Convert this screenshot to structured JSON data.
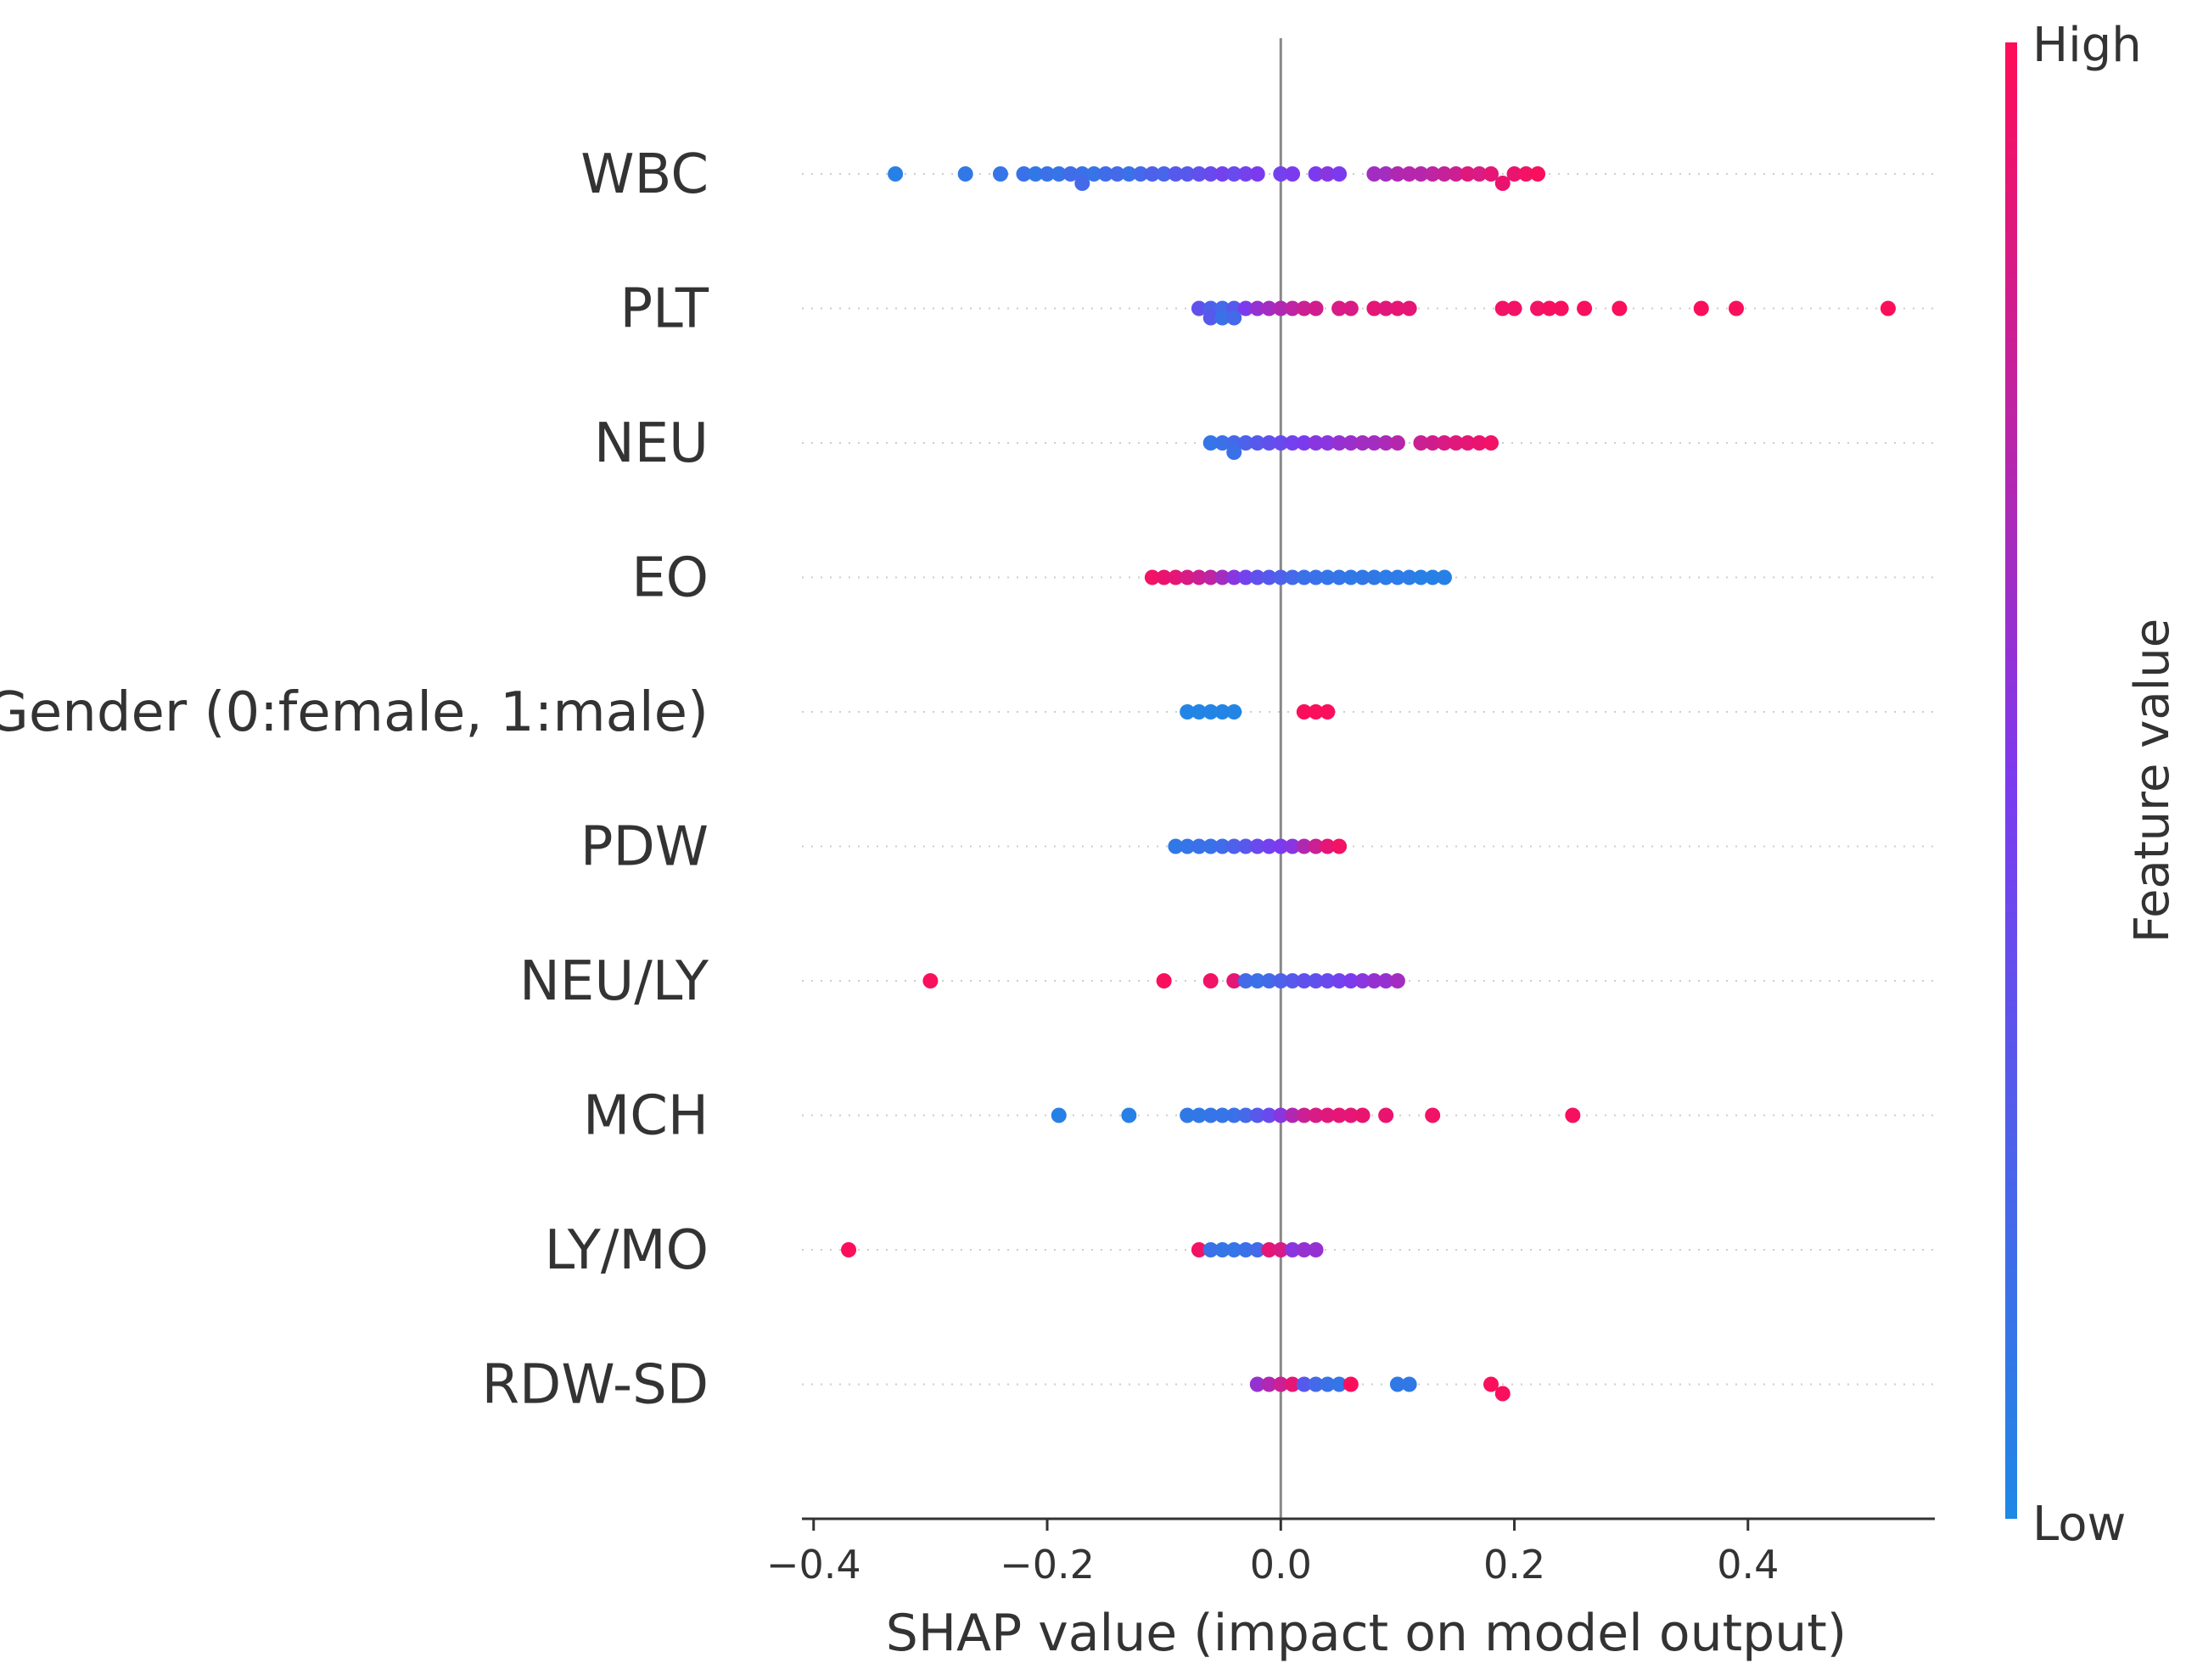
{
  "chart_data": {
    "type": "scatter",
    "subtype": "shap-beeswarm",
    "xlabel": "SHAP value (impact on model output)",
    "xlim": [
      -0.41,
      0.56
    ],
    "xticks": [
      -0.4,
      -0.2,
      0.0,
      0.2,
      0.4
    ],
    "xtick_labels": [
      "−0.4",
      "−0.2",
      "0.0",
      "0.2",
      "0.4"
    ],
    "zero_line": 0.0,
    "colorbar": {
      "title": "Feature value",
      "high_label": "High",
      "low_label": "Low",
      "low_color": "#1e88e5",
      "mid_color": "#7c3aef",
      "high_color": "#ff0d57"
    },
    "features": [
      {
        "name": "WBC",
        "points": [
          [
            -0.33,
            0.05
          ],
          [
            -0.27,
            0.1
          ],
          [
            -0.24,
            0.12
          ],
          [
            -0.22,
            0.15
          ],
          [
            -0.21,
            0.1
          ],
          [
            -0.2,
            0.15
          ],
          [
            -0.19,
            0.12
          ],
          [
            -0.18,
            0.18
          ],
          [
            -0.17,
            0.15
          ],
          [
            -0.17,
            0.2
          ],
          [
            -0.16,
            0.12
          ],
          [
            -0.15,
            0.18
          ],
          [
            -0.14,
            0.2
          ],
          [
            -0.13,
            0.15
          ],
          [
            -0.12,
            0.2
          ],
          [
            -0.11,
            0.25
          ],
          [
            -0.1,
            0.22
          ],
          [
            -0.09,
            0.3
          ],
          [
            -0.08,
            0.3
          ],
          [
            -0.07,
            0.35
          ],
          [
            -0.06,
            0.4
          ],
          [
            -0.05,
            0.45
          ],
          [
            -0.04,
            0.4
          ],
          [
            -0.03,
            0.45
          ],
          [
            -0.02,
            0.5
          ],
          [
            0.0,
            0.45
          ],
          [
            0.01,
            0.5
          ],
          [
            0.03,
            0.5
          ],
          [
            0.04,
            0.55
          ],
          [
            0.05,
            0.5
          ],
          [
            0.08,
            0.65
          ],
          [
            0.09,
            0.65
          ],
          [
            0.1,
            0.7
          ],
          [
            0.11,
            0.72
          ],
          [
            0.12,
            0.72
          ],
          [
            0.13,
            0.75
          ],
          [
            0.14,
            0.78
          ],
          [
            0.15,
            0.8
          ],
          [
            0.16,
            0.88
          ],
          [
            0.17,
            0.85
          ],
          [
            0.18,
            0.9
          ],
          [
            0.19,
            0.92
          ],
          [
            0.2,
            0.92
          ],
          [
            0.21,
            0.95
          ],
          [
            0.22,
            0.98
          ]
        ]
      },
      {
        "name": "PLT",
        "points": [
          [
            -0.07,
            0.35
          ],
          [
            -0.06,
            0.25
          ],
          [
            -0.06,
            0.3
          ],
          [
            -0.05,
            0.2
          ],
          [
            -0.05,
            0.15
          ],
          [
            -0.04,
            0.3
          ],
          [
            -0.04,
            0.2
          ],
          [
            -0.03,
            0.5
          ],
          [
            -0.02,
            0.6
          ],
          [
            -0.01,
            0.65
          ],
          [
            0.0,
            0.7
          ],
          [
            0.01,
            0.75
          ],
          [
            0.02,
            0.8
          ],
          [
            0.03,
            0.82
          ],
          [
            0.05,
            0.85
          ],
          [
            0.06,
            0.85
          ],
          [
            0.08,
            0.9
          ],
          [
            0.09,
            0.88
          ],
          [
            0.1,
            0.9
          ],
          [
            0.11,
            0.9
          ],
          [
            0.19,
            0.95
          ],
          [
            0.2,
            0.95
          ],
          [
            0.22,
            0.95
          ],
          [
            0.23,
            0.97
          ],
          [
            0.24,
            0.97
          ],
          [
            0.26,
            0.97
          ],
          [
            0.29,
            0.98
          ],
          [
            0.36,
            0.98
          ],
          [
            0.39,
            0.98
          ],
          [
            0.52,
            0.99
          ]
        ]
      },
      {
        "name": "NEU",
        "points": [
          [
            -0.06,
            0.12
          ],
          [
            -0.05,
            0.15
          ],
          [
            -0.04,
            0.2
          ],
          [
            -0.04,
            0.15
          ],
          [
            -0.03,
            0.25
          ],
          [
            -0.02,
            0.3
          ],
          [
            -0.01,
            0.35
          ],
          [
            0.0,
            0.4
          ],
          [
            0.01,
            0.45
          ],
          [
            0.02,
            0.5
          ],
          [
            0.03,
            0.55
          ],
          [
            0.04,
            0.55
          ],
          [
            0.05,
            0.6
          ],
          [
            0.06,
            0.62
          ],
          [
            0.07,
            0.65
          ],
          [
            0.08,
            0.65
          ],
          [
            0.09,
            0.68
          ],
          [
            0.1,
            0.72
          ],
          [
            0.12,
            0.8
          ],
          [
            0.13,
            0.82
          ],
          [
            0.14,
            0.85
          ],
          [
            0.15,
            0.88
          ],
          [
            0.16,
            0.9
          ],
          [
            0.17,
            0.92
          ],
          [
            0.18,
            0.95
          ]
        ]
      },
      {
        "name": "EO",
        "points": [
          [
            -0.11,
            0.95
          ],
          [
            -0.1,
            0.92
          ],
          [
            -0.09,
            0.9
          ],
          [
            -0.08,
            0.85
          ],
          [
            -0.07,
            0.8
          ],
          [
            -0.06,
            0.75
          ],
          [
            -0.05,
            0.65
          ],
          [
            -0.04,
            0.55
          ],
          [
            -0.03,
            0.45
          ],
          [
            -0.02,
            0.35
          ],
          [
            -0.01,
            0.3
          ],
          [
            0.0,
            0.25
          ],
          [
            0.01,
            0.2
          ],
          [
            0.02,
            0.15
          ],
          [
            0.03,
            0.15
          ],
          [
            0.04,
            0.12
          ],
          [
            0.05,
            0.12
          ],
          [
            0.06,
            0.1
          ],
          [
            0.07,
            0.1
          ],
          [
            0.08,
            0.1
          ],
          [
            0.09,
            0.08
          ],
          [
            0.1,
            0.08
          ],
          [
            0.11,
            0.08
          ],
          [
            0.12,
            0.05
          ],
          [
            0.13,
            0.05
          ],
          [
            0.14,
            0.05
          ]
        ]
      },
      {
        "name": "Gender (0:female, 1:male)",
        "points": [
          [
            -0.08,
            0.02
          ],
          [
            -0.07,
            0.02
          ],
          [
            -0.06,
            0.02
          ],
          [
            -0.05,
            0.02
          ],
          [
            -0.04,
            0.02
          ],
          [
            0.02,
            0.98
          ],
          [
            0.03,
            0.98
          ],
          [
            0.04,
            0.98
          ]
        ]
      },
      {
        "name": "PDW",
        "points": [
          [
            -0.09,
            0.1
          ],
          [
            -0.08,
            0.12
          ],
          [
            -0.07,
            0.15
          ],
          [
            -0.06,
            0.15
          ],
          [
            -0.05,
            0.18
          ],
          [
            -0.04,
            0.25
          ],
          [
            -0.03,
            0.3
          ],
          [
            -0.02,
            0.4
          ],
          [
            -0.01,
            0.45
          ],
          [
            0.0,
            0.5
          ],
          [
            0.01,
            0.55
          ],
          [
            0.02,
            0.7
          ],
          [
            0.03,
            0.8
          ],
          [
            0.04,
            0.9
          ],
          [
            0.05,
            0.95
          ]
        ]
      },
      {
        "name": "NEU/LY",
        "points": [
          [
            -0.3,
            0.98
          ],
          [
            -0.1,
            0.98
          ],
          [
            -0.06,
            0.95
          ],
          [
            -0.04,
            0.9
          ],
          [
            -0.03,
            0.2
          ],
          [
            -0.02,
            0.15
          ],
          [
            -0.01,
            0.2
          ],
          [
            0.0,
            0.25
          ],
          [
            0.01,
            0.3
          ],
          [
            0.02,
            0.35
          ],
          [
            0.03,
            0.35
          ],
          [
            0.04,
            0.4
          ],
          [
            0.05,
            0.45
          ],
          [
            0.06,
            0.5
          ],
          [
            0.07,
            0.55
          ],
          [
            0.08,
            0.6
          ],
          [
            0.09,
            0.6
          ],
          [
            0.1,
            0.65
          ]
        ]
      },
      {
        "name": "MCH",
        "points": [
          [
            -0.19,
            0.05
          ],
          [
            -0.13,
            0.05
          ],
          [
            -0.08,
            0.1
          ],
          [
            -0.07,
            0.1
          ],
          [
            -0.06,
            0.12
          ],
          [
            -0.05,
            0.12
          ],
          [
            -0.04,
            0.15
          ],
          [
            -0.03,
            0.2
          ],
          [
            -0.02,
            0.3
          ],
          [
            -0.01,
            0.4
          ],
          [
            0.0,
            0.55
          ],
          [
            0.01,
            0.7
          ],
          [
            0.02,
            0.8
          ],
          [
            0.03,
            0.85
          ],
          [
            0.04,
            0.88
          ],
          [
            0.05,
            0.9
          ],
          [
            0.06,
            0.9
          ],
          [
            0.07,
            0.92
          ],
          [
            0.09,
            0.92
          ],
          [
            0.13,
            0.95
          ],
          [
            0.25,
            0.97
          ]
        ]
      },
      {
        "name": "LY/MO",
        "points": [
          [
            -0.37,
            0.99
          ],
          [
            -0.07,
            0.95
          ],
          [
            -0.06,
            0.15
          ],
          [
            -0.05,
            0.12
          ],
          [
            -0.04,
            0.12
          ],
          [
            -0.03,
            0.15
          ],
          [
            -0.02,
            0.2
          ],
          [
            -0.01,
            0.9
          ],
          [
            0.0,
            0.85
          ],
          [
            0.01,
            0.55
          ],
          [
            0.02,
            0.6
          ],
          [
            0.03,
            0.6
          ]
        ]
      },
      {
        "name": "RDW-SD",
        "points": [
          [
            -0.02,
            0.6
          ],
          [
            -0.01,
            0.7
          ],
          [
            0.0,
            0.8
          ],
          [
            0.01,
            0.9
          ],
          [
            0.02,
            0.3
          ],
          [
            0.03,
            0.2
          ],
          [
            0.04,
            0.15
          ],
          [
            0.05,
            0.12
          ],
          [
            0.06,
            0.98
          ],
          [
            0.1,
            0.1
          ],
          [
            0.11,
            0.1
          ],
          [
            0.18,
            0.98
          ],
          [
            0.19,
            0.98
          ]
        ]
      }
    ]
  }
}
